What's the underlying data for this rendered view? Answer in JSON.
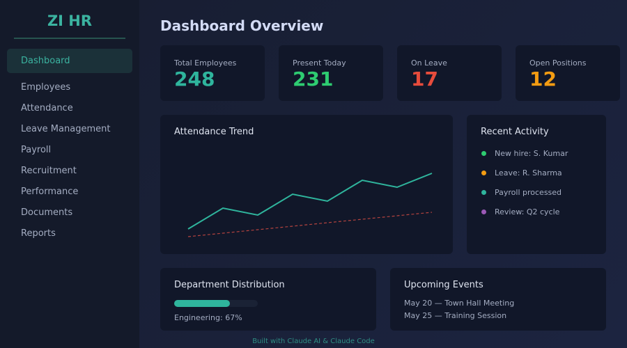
{
  "sidebar": {
    "brand": "ZI HR",
    "active": "Dashboard",
    "items": [
      "Employees",
      "Attendance",
      "Leave Management",
      "Payroll",
      "Recruitment",
      "Performance",
      "Documents",
      "Reports"
    ]
  },
  "header": {
    "title": "Dashboard Overview"
  },
  "stats": [
    {
      "label": "Total Employees",
      "value": "248",
      "color": "#2fb59d"
    },
    {
      "label": "Present Today",
      "value": "231",
      "color": "#2ecc71"
    },
    {
      "label": "On Leave",
      "value": "17",
      "color": "#e74c3c"
    },
    {
      "label": "Open Positions",
      "value": "12",
      "color": "#f39c12"
    }
  ],
  "chart_data": {
    "type": "line",
    "title": "Attendance Trend",
    "series": [
      {
        "color": "#2fb59d",
        "values": [
          16,
          46,
          36,
          66,
          56,
          86,
          76,
          96
        ]
      },
      {
        "color": "#b5433f",
        "dashed": true,
        "values": [
          5,
          10,
          15,
          20,
          25,
          30,
          35,
          40
        ]
      }
    ]
  },
  "activity": {
    "title": "Recent Activity",
    "items": [
      {
        "text": "New hire: S. Kumar",
        "color": "#2ecc71"
      },
      {
        "text": "Leave: R. Sharma",
        "color": "#f39c12"
      },
      {
        "text": "Payroll processed",
        "color": "#2fb59d"
      },
      {
        "text": "Review: Q2 cycle",
        "color": "#9b59b6"
      }
    ]
  },
  "departments": {
    "title": "Department Distribution",
    "items": [
      {
        "label": "Engineering: 67%",
        "value": 67
      }
    ]
  },
  "events": {
    "title": "Upcoming Events",
    "items": [
      "May 20 — Town Hall Meeting",
      "May 25 — Training Session"
    ]
  },
  "footer": "Built with Claude AI & Claude Code"
}
